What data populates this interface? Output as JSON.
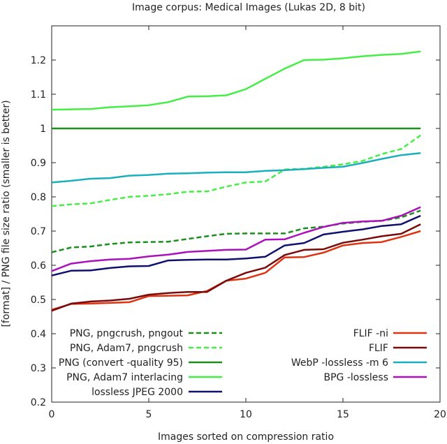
{
  "chart_data": {
    "type": "line",
    "title": "Image corpus: Medical Images (Lukas 2D, 8 bit)",
    "xlabel": "Images sorted on compression ratio",
    "ylabel": "[format] / PNG file size ratio (smaller is better)",
    "xlim": [
      0,
      20
    ],
    "ylim": [
      0.2,
      1.3
    ],
    "xticks": [
      0,
      5,
      10,
      15,
      20
    ],
    "yticks": [
      0.2,
      0.3,
      0.4,
      0.5,
      0.6,
      0.7,
      0.8,
      0.9,
      1.0,
      1.1,
      1.2
    ],
    "ytick_labels": [
      "0.2",
      "0.3",
      "0.4",
      "0.5",
      "0.6",
      "0.7",
      "0.8",
      "0.9",
      "1",
      "1.1",
      "1.2"
    ],
    "grid": false,
    "x": [
      0,
      1,
      2,
      3,
      4,
      5,
      6,
      7,
      8,
      9,
      10,
      11,
      12,
      13,
      14,
      15,
      16,
      17,
      18,
      19
    ],
    "series": [
      {
        "name": "PNG, pngcrush, pngout",
        "color": "#1a8f1a",
        "dash": "dashed",
        "values": [
          0.638,
          0.652,
          0.655,
          0.662,
          0.667,
          0.668,
          0.669,
          0.677,
          0.685,
          0.692,
          0.693,
          0.693,
          0.693,
          0.708,
          0.713,
          0.722,
          0.727,
          0.73,
          0.74,
          0.76
        ]
      },
      {
        "name": "PNG, Adam7, pngcrush",
        "color": "#44ee44",
        "dash": "dashed",
        "values": [
          0.773,
          0.778,
          0.781,
          0.791,
          0.8,
          0.803,
          0.808,
          0.815,
          0.816,
          0.83,
          0.842,
          0.845,
          0.88,
          0.882,
          0.888,
          0.895,
          0.905,
          0.925,
          0.94,
          0.98
        ]
      },
      {
        "name": "PNG (convert -quality 95)",
        "color": "#1a8f1a",
        "dash": "solid",
        "values": [
          1,
          1,
          1,
          1,
          1,
          1,
          1,
          1,
          1,
          1,
          1,
          1,
          1,
          1,
          1,
          1,
          1,
          1,
          1,
          1
        ]
      },
      {
        "name": "PNG, Adam7 interlacing",
        "color": "#44ee44",
        "dash": "solid",
        "values": [
          1.055,
          1.056,
          1.057,
          1.062,
          1.065,
          1.068,
          1.077,
          1.093,
          1.094,
          1.097,
          1.115,
          1.145,
          1.175,
          1.2,
          1.201,
          1.205,
          1.211,
          1.215,
          1.218,
          1.225
        ]
      },
      {
        "name": "lossless JPEG 2000",
        "color": "#10106e",
        "dash": "solid",
        "values": [
          0.57,
          0.584,
          0.585,
          0.592,
          0.597,
          0.598,
          0.614,
          0.616,
          0.617,
          0.617,
          0.62,
          0.625,
          0.658,
          0.665,
          0.69,
          0.698,
          0.705,
          0.715,
          0.72,
          0.745
        ]
      },
      {
        "name": "FLIF -ni",
        "color": "#dd3311",
        "dash": "solid",
        "values": [
          0.47,
          0.487,
          0.488,
          0.49,
          0.492,
          0.51,
          0.511,
          0.512,
          0.525,
          0.555,
          0.561,
          0.578,
          0.623,
          0.624,
          0.637,
          0.658,
          0.665,
          0.668,
          0.683,
          0.7
        ]
      },
      {
        "name": "FLIF",
        "color": "#7a0a0a",
        "dash": "solid",
        "values": [
          0.467,
          0.488,
          0.494,
          0.497,
          0.502,
          0.514,
          0.519,
          0.522,
          0.522,
          0.555,
          0.578,
          0.593,
          0.63,
          0.645,
          0.647,
          0.666,
          0.675,
          0.685,
          0.692,
          0.72
        ]
      },
      {
        "name": "WebP -lossless -m 6",
        "color": "#1aafbb",
        "dash": "solid",
        "values": [
          0.842,
          0.847,
          0.853,
          0.855,
          0.862,
          0.864,
          0.868,
          0.869,
          0.871,
          0.872,
          0.872,
          0.876,
          0.878,
          0.881,
          0.885,
          0.888,
          0.899,
          0.911,
          0.922,
          0.928
        ]
      },
      {
        "name": "BPG -lossless",
        "color": "#aa11bb",
        "dash": "solid",
        "values": [
          0.583,
          0.605,
          0.612,
          0.617,
          0.619,
          0.626,
          0.631,
          0.639,
          0.642,
          0.645,
          0.646,
          0.675,
          0.676,
          0.695,
          0.712,
          0.724,
          0.728,
          0.73,
          0.745,
          0.77
        ]
      }
    ],
    "legend_left": {
      "placement": "bottom-left",
      "items": [
        "PNG, pngcrush, pngout",
        "PNG, Adam7, pngcrush",
        "PNG (convert -quality 95)",
        "PNG, Adam7 interlacing",
        "lossless JPEG 2000"
      ]
    },
    "legend_right": {
      "placement": "bottom-right",
      "items": [
        "FLIF -ni",
        "FLIF",
        "WebP -lossless -m 6",
        "BPG -lossless"
      ]
    }
  }
}
